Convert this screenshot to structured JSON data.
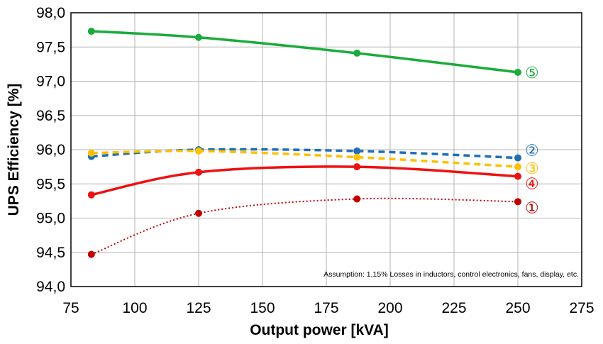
{
  "chart_data": {
    "type": "line",
    "title": "",
    "xlabel": "Output power [kVA]",
    "ylabel": "UPS Efficiency [%]",
    "xlim": [
      75,
      275
    ],
    "ylim": [
      94.0,
      98.0
    ],
    "x_ticks": [
      75,
      100,
      125,
      150,
      175,
      200,
      225,
      250,
      275
    ],
    "x_tick_labels": [
      "75",
      "100",
      "125",
      "150",
      "175",
      "200",
      "225",
      "250",
      "275"
    ],
    "y_ticks": [
      94.0,
      94.5,
      95.0,
      95.5,
      96.0,
      96.5,
      97.0,
      97.5,
      98.0
    ],
    "y_tick_labels": [
      "94,0",
      "94,5",
      "95,0",
      "95,5",
      "96,0",
      "96,5",
      "97,0",
      "97,5",
      "98,0"
    ],
    "grid": "horizontal and vertical",
    "legend": "none",
    "annotation": "Assumption: 1,15% Losses in inductors, control electronics, fans, display, etc.",
    "series": [
      {
        "label": "⑤",
        "color": "#1aab3c",
        "style": "solid",
        "x": [
          83,
          125,
          187,
          250
        ],
        "y": [
          97.73,
          97.64,
          97.41,
          97.13
        ]
      },
      {
        "label": "②",
        "color": "#1f6fb5",
        "style": "dashed",
        "x": [
          83,
          125,
          187,
          250
        ],
        "y": [
          95.9,
          96.0,
          95.98,
          95.88
        ]
      },
      {
        "label": "③",
        "color": "#ffc000",
        "style": "dashed",
        "x": [
          83,
          125,
          187,
          250
        ],
        "y": [
          95.95,
          95.98,
          95.89,
          95.75
        ]
      },
      {
        "label": "④",
        "color": "#ee1111",
        "style": "solid",
        "x": [
          83,
          125,
          187,
          250
        ],
        "y": [
          95.34,
          95.67,
          95.75,
          95.61
        ]
      },
      {
        "label": "①",
        "color": "#c00000",
        "style": "dotted",
        "x": [
          83,
          125,
          187,
          250
        ],
        "y": [
          94.47,
          95.07,
          95.28,
          95.24
        ]
      }
    ]
  }
}
